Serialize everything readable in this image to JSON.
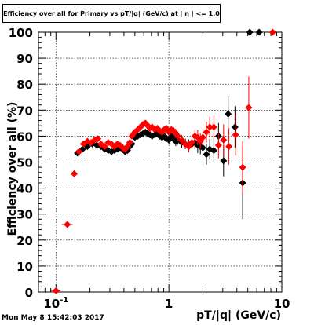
{
  "title": "Efficiency over all for Primary vs pT/|q| (GeV/c) at | η | <= 1.0",
  "footer_timestamp": "Mon May  8 15:42:03 2017",
  "chart_data": {
    "type": "scatter",
    "title": "Efficiency over all for Primary vs pT/|q| (GeV/c) at | η | <= 1.0",
    "xlabel": "pT/|q| (GeV/c)",
    "ylabel": "Efficiency over all (%)",
    "xscale": "log",
    "xlim": [
      0.07,
      10
    ],
    "ylim": [
      0,
      100
    ],
    "x_tick_labels": [
      {
        "v": 0.1,
        "t": "10",
        "sup": "-1"
      },
      {
        "v": 1,
        "t": "1",
        "sup": ""
      },
      {
        "v": 10,
        "t": "10",
        "sup": ""
      }
    ],
    "y_ticks": [
      0,
      10,
      20,
      30,
      40,
      50,
      60,
      70,
      80,
      90,
      100
    ],
    "grid": true,
    "series": [
      {
        "color": "#000000",
        "x": [
          0.155,
          0.172,
          0.19,
          0.21,
          0.23,
          0.25,
          0.27,
          0.29,
          0.31,
          0.33,
          0.35,
          0.37,
          0.39,
          0.41,
          0.43,
          0.45,
          0.47,
          0.5,
          0.53,
          0.56,
          0.59,
          0.62,
          0.65,
          0.68,
          0.71,
          0.75,
          0.79,
          0.83,
          0.87,
          0.91,
          0.95,
          1.0,
          1.05,
          1.1,
          1.15,
          1.2,
          1.3,
          1.4,
          1.5,
          1.6,
          1.7,
          1.8,
          1.9,
          2.0,
          2.15,
          2.3,
          2.5,
          2.75,
          3.05,
          3.35,
          3.85,
          4.5,
          5.2,
          6.3
        ],
        "y": [
          53.5,
          55.0,
          56.0,
          57.0,
          56.5,
          56.0,
          55.0,
          54.5,
          54.0,
          54.5,
          55.0,
          55.5,
          55.0,
          54.0,
          54.5,
          56.0,
          57.0,
          59.5,
          60.0,
          60.5,
          61.0,
          61.5,
          61.0,
          60.5,
          60.0,
          60.5,
          61.0,
          60.0,
          59.5,
          60.0,
          59.0,
          58.5,
          60.0,
          59.0,
          58.0,
          58.5,
          57.5,
          57.0,
          56.5,
          57.0,
          57.5,
          56.5,
          56.0,
          55.5,
          53.0,
          55.0,
          54.5,
          60.0,
          50.5,
          68.5,
          63.5,
          42.0,
          100.0,
          100.0
        ],
        "err_y": [
          1.0,
          1.0,
          0.9,
          0.9,
          0.9,
          0.9,
          0.9,
          0.9,
          0.9,
          0.9,
          0.9,
          0.9,
          0.9,
          0.9,
          0.9,
          0.9,
          0.9,
          1.0,
          1.0,
          1.0,
          1.0,
          1.0,
          1.0,
          1.0,
          1.0,
          1.0,
          1.0,
          1.2,
          1.2,
          1.2,
          1.2,
          1.5,
          1.5,
          1.5,
          1.8,
          1.8,
          2.0,
          2.0,
          2.2,
          2.5,
          2.5,
          3.0,
          3.0,
          3.5,
          4.0,
          4.0,
          4.5,
          5.0,
          6.0,
          7.0,
          8.0,
          14.0,
          0.0,
          0.0
        ]
      },
      {
        "color": "#ff0000",
        "x": [
          0.1,
          0.126,
          0.145,
          0.16,
          0.175,
          0.19,
          0.205,
          0.22,
          0.235,
          0.25,
          0.27,
          0.29,
          0.31,
          0.33,
          0.35,
          0.37,
          0.39,
          0.41,
          0.43,
          0.45,
          0.47,
          0.5,
          0.53,
          0.56,
          0.59,
          0.62,
          0.65,
          0.68,
          0.71,
          0.75,
          0.79,
          0.83,
          0.87,
          0.91,
          0.95,
          1.0,
          1.05,
          1.1,
          1.15,
          1.2,
          1.3,
          1.4,
          1.5,
          1.6,
          1.7,
          1.8,
          1.9,
          2.0,
          2.15,
          2.3,
          2.5,
          2.75,
          3.05,
          3.4,
          3.9,
          4.5,
          5.1,
          8.3
        ],
        "y": [
          0.5,
          26.0,
          45.5,
          54.0,
          57.0,
          58.0,
          57.5,
          58.5,
          59.0,
          57.0,
          56.0,
          57.5,
          57.0,
          56.0,
          57.0,
          56.5,
          55.5,
          55.0,
          56.0,
          57.5,
          60.0,
          61.5,
          62.5,
          63.5,
          64.5,
          65.0,
          64.0,
          63.0,
          63.5,
          62.5,
          63.0,
          62.0,
          61.5,
          62.5,
          63.0,
          61.5,
          62.5,
          62.0,
          61.0,
          60.0,
          58.5,
          57.0,
          56.0,
          57.5,
          60.0,
          59.5,
          58.0,
          59.5,
          61.5,
          63.5,
          63.5,
          56.5,
          58.5,
          56.0,
          60.5,
          48.0,
          71.0,
          100.0
        ],
        "err_y": [
          0.4,
          0.8,
          1.0,
          1.0,
          0.9,
          0.9,
          0.9,
          0.9,
          0.9,
          0.9,
          0.9,
          0.9,
          0.9,
          0.9,
          0.9,
          0.9,
          0.9,
          0.9,
          0.9,
          0.9,
          0.9,
          1.0,
          1.0,
          1.0,
          1.0,
          1.0,
          1.0,
          1.0,
          1.0,
          1.0,
          1.1,
          1.1,
          1.2,
          1.2,
          1.2,
          1.5,
          1.5,
          1.5,
          1.8,
          1.8,
          2.0,
          2.0,
          2.2,
          2.5,
          2.5,
          3.0,
          3.0,
          3.5,
          4.0,
          4.0,
          4.5,
          5.0,
          6.0,
          7.0,
          8.0,
          10.0,
          12.0,
          0.0
        ]
      }
    ]
  }
}
